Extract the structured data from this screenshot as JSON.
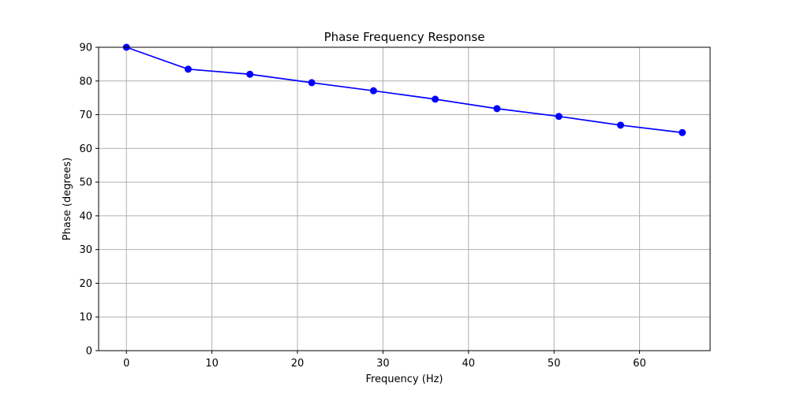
{
  "chart_data": {
    "type": "line",
    "title": "Phase Frequency Response",
    "xlabel": "Frequency (Hz)",
    "ylabel": "Phase (degrees)",
    "xlim": [
      -3.25,
      68.25
    ],
    "ylim": [
      0,
      90
    ],
    "xticks": [
      0,
      10,
      20,
      30,
      40,
      50,
      60
    ],
    "yticks": [
      0,
      10,
      20,
      30,
      40,
      50,
      60,
      70,
      80,
      90
    ],
    "grid": true,
    "series": [
      {
        "color": "#0000ff",
        "marker": "circle",
        "x": [
          0,
          7.22,
          14.44,
          21.67,
          28.89,
          36.11,
          43.33,
          50.56,
          57.78,
          65.0
        ],
        "y": [
          90.0,
          83.5,
          82.0,
          79.5,
          77.1,
          74.6,
          71.8,
          69.5,
          66.9,
          64.7
        ]
      }
    ]
  }
}
